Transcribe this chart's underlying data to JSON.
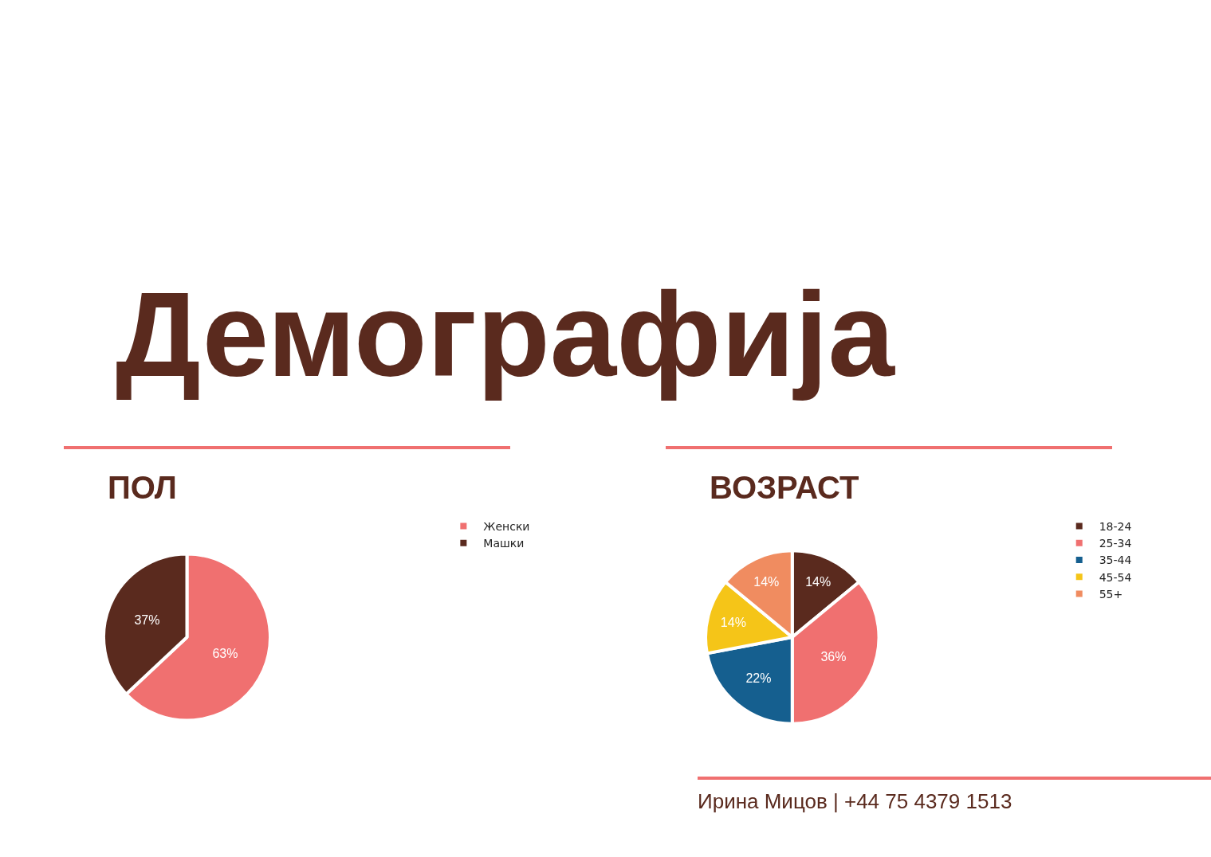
{
  "chart_data": [
    {
      "type": "pie",
      "title": "ПОЛ",
      "annotations": [
        "Демографија"
      ],
      "categories": [
        "Женски",
        "Машки"
      ],
      "values": [
        63,
        37
      ],
      "colors": [
        "#f07070",
        "#5a2a1e"
      ],
      "value_labels": [
        "63%",
        "37%"
      ],
      "legend": "top right"
    },
    {
      "type": "pie",
      "title": "ВОЗРАСТ",
      "annotations": [
        "Ирина Мицов | +44 75 4379 1513"
      ],
      "categories": [
        "18-24",
        "25-34",
        "35-44",
        "45-54",
        "55+"
      ],
      "values": [
        14,
        36,
        22,
        14,
        14
      ],
      "colors": [
        "#5a2a1e",
        "#f07070",
        "#155f8f",
        "#f5c518",
        "#f08c60"
      ],
      "value_labels": [
        "14%",
        "36%",
        "22%",
        "14%",
        "14%"
      ],
      "legend": "top right"
    }
  ]
}
